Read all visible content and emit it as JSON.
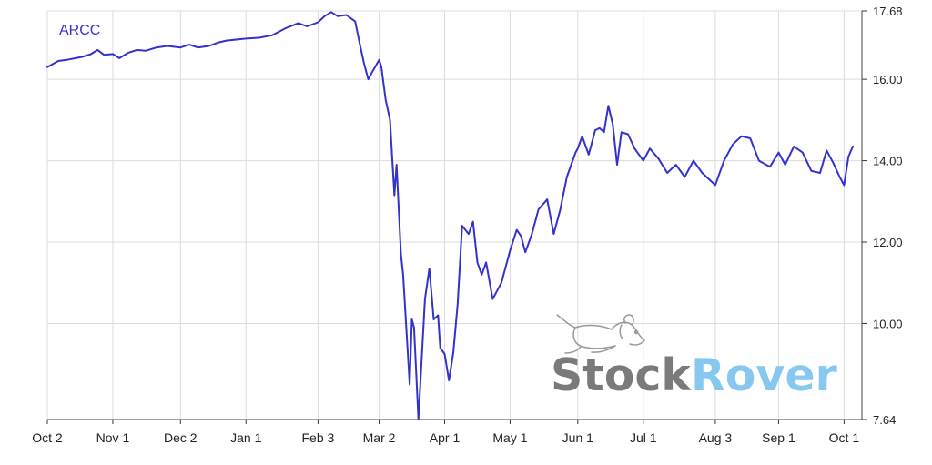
{
  "chart_data": {
    "type": "line",
    "title": "",
    "xlabel": "",
    "ylabel": "",
    "legend_placement": "top-left",
    "grid": true,
    "ylim": [
      7.64,
      17.68
    ],
    "y_ticks": [
      "17.68",
      "16.00",
      "14.00",
      "12.00",
      "10.00",
      "7.64"
    ],
    "x_ticks": [
      "Oct 2",
      "Nov 1",
      "Dec 2",
      "Jan 1",
      "Feb 3",
      "Mar 2",
      "Apr 1",
      "May 1",
      "Jun 1",
      "Jul 1",
      "Aug 3",
      "Sep 1",
      "Oct 1"
    ],
    "series": [
      {
        "name": "ARCC",
        "color": "#3333cc",
        "points": [
          [
            "Oct 2",
            16.3
          ],
          [
            "Oct 7",
            16.45
          ],
          [
            "Oct 11",
            16.48
          ],
          [
            "Oct 15",
            16.52
          ],
          [
            "Oct 18",
            16.55
          ],
          [
            "Oct 22",
            16.62
          ],
          [
            "Oct 25",
            16.72
          ],
          [
            "Oct 28",
            16.6
          ],
          [
            "Nov 1",
            16.62
          ],
          [
            "Nov 4",
            16.52
          ],
          [
            "Nov 8",
            16.65
          ],
          [
            "Nov 12",
            16.72
          ],
          [
            "Nov 16",
            16.7
          ],
          [
            "Nov 21",
            16.78
          ],
          [
            "Nov 26",
            16.82
          ],
          [
            "Dec 2",
            16.78
          ],
          [
            "Dec 6",
            16.85
          ],
          [
            "Dec 10",
            16.78
          ],
          [
            "Dec 15",
            16.82
          ],
          [
            "Dec 19",
            16.9
          ],
          [
            "Dec 23",
            16.95
          ],
          [
            "Jan 1",
            17.0
          ],
          [
            "Jan 7",
            17.02
          ],
          [
            "Jan 13",
            17.08
          ],
          [
            "Jan 19",
            17.25
          ],
          [
            "Jan 25",
            17.38
          ],
          [
            "Jan 29",
            17.3
          ],
          [
            "Feb 3",
            17.4
          ],
          [
            "Feb 6",
            17.55
          ],
          [
            "Feb 9",
            17.65
          ],
          [
            "Feb 12",
            17.55
          ],
          [
            "Feb 16",
            17.58
          ],
          [
            "Feb 20",
            17.42
          ],
          [
            "Feb 22",
            16.9
          ],
          [
            "Feb 24",
            16.4
          ],
          [
            "Feb 26",
            16.0
          ],
          [
            "Feb 28",
            16.2
          ],
          [
            "Mar 2",
            16.48
          ],
          [
            "Mar 3",
            16.3
          ],
          [
            "Mar 5",
            15.5
          ],
          [
            "Mar 7",
            15.0
          ],
          [
            "Mar 9",
            13.15
          ],
          [
            "Mar 10",
            13.9
          ],
          [
            "Mar 12",
            11.7
          ],
          [
            "Mar 13",
            11.2
          ],
          [
            "Mar 16",
            8.5
          ],
          [
            "Mar 17",
            10.1
          ],
          [
            "Mar 18",
            9.9
          ],
          [
            "Mar 20",
            7.64
          ],
          [
            "Mar 23",
            10.6
          ],
          [
            "Mar 25",
            11.35
          ],
          [
            "Mar 27",
            10.1
          ],
          [
            "Mar 29",
            10.2
          ],
          [
            "Mar 30",
            9.4
          ],
          [
            "Apr 1",
            9.25
          ],
          [
            "Apr 3",
            8.6
          ],
          [
            "Apr 5",
            9.3
          ],
          [
            "Apr 7",
            10.5
          ],
          [
            "Apr 9",
            12.4
          ],
          [
            "Apr 12",
            12.2
          ],
          [
            "Apr 14",
            12.5
          ],
          [
            "Apr 16",
            11.5
          ],
          [
            "Apr 18",
            11.2
          ],
          [
            "Apr 20",
            11.5
          ],
          [
            "Apr 23",
            10.6
          ],
          [
            "Apr 25",
            10.8
          ],
          [
            "Apr 27",
            11.0
          ],
          [
            "May 1",
            11.8
          ],
          [
            "May 4",
            12.3
          ],
          [
            "May 6",
            12.15
          ],
          [
            "May 8",
            11.75
          ],
          [
            "May 11",
            12.2
          ],
          [
            "May 14",
            12.8
          ],
          [
            "May 18",
            13.05
          ],
          [
            "May 21",
            12.2
          ],
          [
            "May 24",
            12.8
          ],
          [
            "May 27",
            13.6
          ],
          [
            "May 29",
            13.9
          ],
          [
            "May 31",
            14.2
          ],
          [
            "Jun 1",
            14.3
          ],
          [
            "Jun 3",
            14.6
          ],
          [
            "Jun 6",
            14.15
          ],
          [
            "Jun 9",
            14.75
          ],
          [
            "Jun 11",
            14.8
          ],
          [
            "Jun 13",
            14.7
          ],
          [
            "Jun 15",
            15.35
          ],
          [
            "Jun 17",
            14.9
          ],
          [
            "Jun 19",
            13.9
          ],
          [
            "Jun 21",
            14.7
          ],
          [
            "Jun 24",
            14.65
          ],
          [
            "Jun 27",
            14.3
          ],
          [
            "Jul 1",
            14.0
          ],
          [
            "Jul 4",
            14.3
          ],
          [
            "Jul 8",
            14.05
          ],
          [
            "Jul 12",
            13.7
          ],
          [
            "Jul 16",
            13.9
          ],
          [
            "Jul 20",
            13.6
          ],
          [
            "Jul 24",
            14.0
          ],
          [
            "Jul 28",
            13.7
          ],
          [
            "Aug 3",
            13.4
          ],
          [
            "Aug 7",
            14.0
          ],
          [
            "Aug 11",
            14.4
          ],
          [
            "Aug 15",
            14.6
          ],
          [
            "Aug 19",
            14.55
          ],
          [
            "Aug 23",
            14.0
          ],
          [
            "Aug 28",
            13.85
          ],
          [
            "Sep 1",
            14.2
          ],
          [
            "Sep 4",
            13.9
          ],
          [
            "Sep 8",
            14.35
          ],
          [
            "Sep 12",
            14.2
          ],
          [
            "Sep 16",
            13.75
          ],
          [
            "Sep 20",
            13.7
          ],
          [
            "Sep 23",
            14.25
          ],
          [
            "Sep 26",
            13.95
          ],
          [
            "Sep 29",
            13.6
          ],
          [
            "Oct 1",
            13.4
          ],
          [
            "Oct 3",
            14.1
          ],
          [
            "Oct 5",
            14.35
          ]
        ]
      }
    ],
    "watermark": {
      "part1": "Stock",
      "part2": "Rover",
      "color1": "#7a7a7a",
      "color2": "#86c8ef"
    }
  }
}
